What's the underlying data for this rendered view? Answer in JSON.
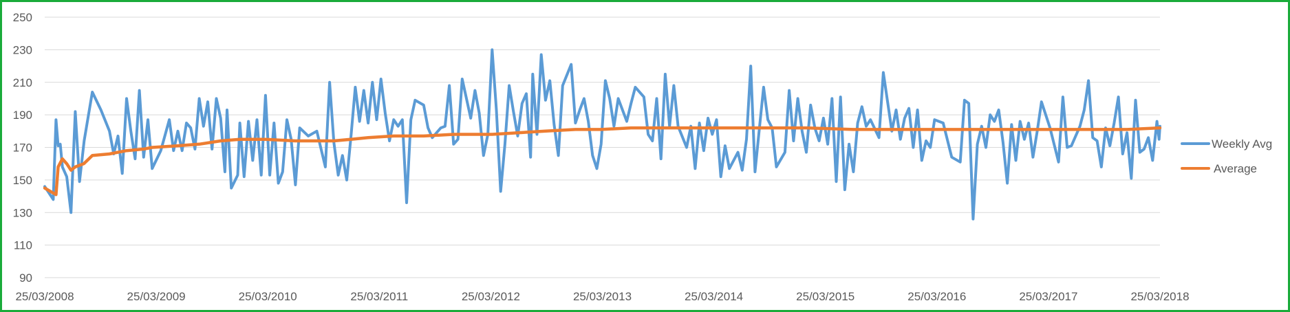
{
  "chart_data": {
    "type": "line",
    "title": "",
    "xlabel": "",
    "ylabel": "",
    "ylim": [
      90,
      250
    ],
    "yticks": [
      90,
      110,
      130,
      150,
      170,
      190,
      210,
      230,
      250
    ],
    "xlim": [
      "2008-03-25",
      "2018-03-25"
    ],
    "xtick_labels": [
      "25/03/2008",
      "25/03/2009",
      "25/03/2010",
      "25/03/2011",
      "25/03/2012",
      "25/03/2013",
      "25/03/2014",
      "25/03/2015",
      "25/03/2016",
      "25/03/2017",
      "25/03/2018"
    ],
    "grid": true,
    "legend_position": "right",
    "series": [
      {
        "name": "Weekly Avg",
        "color": "#5b9bd5",
        "points": [
          [
            "2008-03-25",
            146
          ],
          [
            "2008-04-22",
            138
          ],
          [
            "2008-05-01",
            187
          ],
          [
            "2008-05-08",
            171
          ],
          [
            "2008-05-15",
            172
          ],
          [
            "2008-05-22",
            158
          ],
          [
            "2008-06-05",
            152
          ],
          [
            "2008-06-19",
            130
          ],
          [
            "2008-07-03",
            192
          ],
          [
            "2008-07-17",
            149
          ],
          [
            "2008-08-01",
            174
          ],
          [
            "2008-08-28",
            204
          ],
          [
            "2008-09-25",
            193
          ],
          [
            "2008-10-23",
            180
          ],
          [
            "2008-11-06",
            166
          ],
          [
            "2008-11-20",
            177
          ],
          [
            "2008-12-04",
            154
          ],
          [
            "2008-12-18",
            200
          ],
          [
            "2009-01-01",
            180
          ],
          [
            "2009-01-15",
            163
          ],
          [
            "2009-01-29",
            205
          ],
          [
            "2009-02-12",
            164
          ],
          [
            "2009-02-26",
            187
          ],
          [
            "2009-03-12",
            157
          ],
          [
            "2009-04-09",
            168
          ],
          [
            "2009-05-07",
            187
          ],
          [
            "2009-05-21",
            168
          ],
          [
            "2009-06-04",
            180
          ],
          [
            "2009-06-18",
            168
          ],
          [
            "2009-07-02",
            185
          ],
          [
            "2009-07-16",
            182
          ],
          [
            "2009-07-30",
            169
          ],
          [
            "2009-08-13",
            200
          ],
          [
            "2009-08-27",
            183
          ],
          [
            "2009-09-10",
            198
          ],
          [
            "2009-09-24",
            169
          ],
          [
            "2009-10-08",
            200
          ],
          [
            "2009-10-22",
            188
          ],
          [
            "2009-11-05",
            155
          ],
          [
            "2009-11-12",
            193
          ],
          [
            "2009-11-26",
            145
          ],
          [
            "2009-12-17",
            153
          ],
          [
            "2009-12-24",
            185
          ],
          [
            "2010-01-07",
            152
          ],
          [
            "2010-01-21",
            186
          ],
          [
            "2010-02-04",
            162
          ],
          [
            "2010-02-18",
            187
          ],
          [
            "2010-03-04",
            153
          ],
          [
            "2010-03-18",
            202
          ],
          [
            "2010-04-01",
            153
          ],
          [
            "2010-04-15",
            185
          ],
          [
            "2010-04-29",
            148
          ],
          [
            "2010-05-13",
            155
          ],
          [
            "2010-05-27",
            187
          ],
          [
            "2010-06-10",
            175
          ],
          [
            "2010-06-24",
            147
          ],
          [
            "2010-07-08",
            182
          ],
          [
            "2010-08-05",
            177
          ],
          [
            "2010-09-02",
            180
          ],
          [
            "2010-09-16",
            169
          ],
          [
            "2010-09-30",
            158
          ],
          [
            "2010-10-14",
            210
          ],
          [
            "2010-10-28",
            173
          ],
          [
            "2010-11-11",
            153
          ],
          [
            "2010-11-25",
            165
          ],
          [
            "2010-12-09",
            150
          ],
          [
            "2010-12-23",
            177
          ],
          [
            "2011-01-06",
            207
          ],
          [
            "2011-01-20",
            186
          ],
          [
            "2011-02-03",
            205
          ],
          [
            "2011-02-17",
            185
          ],
          [
            "2011-03-03",
            210
          ],
          [
            "2011-03-17",
            187
          ],
          [
            "2011-03-31",
            212
          ],
          [
            "2011-04-14",
            191
          ],
          [
            "2011-04-28",
            174
          ],
          [
            "2011-05-12",
            187
          ],
          [
            "2011-05-26",
            183
          ],
          [
            "2011-06-09",
            187
          ],
          [
            "2011-06-23",
            136
          ],
          [
            "2011-07-07",
            187
          ],
          [
            "2011-07-21",
            199
          ],
          [
            "2011-08-18",
            196
          ],
          [
            "2011-09-01",
            182
          ],
          [
            "2011-09-15",
            176
          ],
          [
            "2011-10-13",
            182
          ],
          [
            "2011-10-27",
            183
          ],
          [
            "2011-11-10",
            208
          ],
          [
            "2011-11-24",
            172
          ],
          [
            "2011-12-08",
            175
          ],
          [
            "2011-12-22",
            212
          ],
          [
            "2012-01-19",
            188
          ],
          [
            "2012-02-02",
            205
          ],
          [
            "2012-02-16",
            191
          ],
          [
            "2012-03-01",
            165
          ],
          [
            "2012-03-15",
            178
          ],
          [
            "2012-03-29",
            230
          ],
          [
            "2012-04-12",
            193
          ],
          [
            "2012-04-26",
            143
          ],
          [
            "2012-05-10",
            172
          ],
          [
            "2012-05-24",
            208
          ],
          [
            "2012-06-07",
            192
          ],
          [
            "2012-06-21",
            177
          ],
          [
            "2012-07-05",
            197
          ],
          [
            "2012-07-19",
            203
          ],
          [
            "2012-08-02",
            164
          ],
          [
            "2012-08-09",
            215
          ],
          [
            "2012-08-23",
            178
          ],
          [
            "2012-09-06",
            227
          ],
          [
            "2012-09-20",
            199
          ],
          [
            "2012-10-04",
            211
          ],
          [
            "2012-10-18",
            184
          ],
          [
            "2012-11-01",
            165
          ],
          [
            "2012-11-15",
            208
          ],
          [
            "2012-12-13",
            221
          ],
          [
            "2012-12-27",
            185
          ],
          [
            "2013-01-10",
            193
          ],
          [
            "2013-01-24",
            200
          ],
          [
            "2013-02-07",
            186
          ],
          [
            "2013-02-21",
            165
          ],
          [
            "2013-03-07",
            157
          ],
          [
            "2013-03-21",
            172
          ],
          [
            "2013-04-04",
            211
          ],
          [
            "2013-04-18",
            200
          ],
          [
            "2013-05-02",
            183
          ],
          [
            "2013-05-16",
            200
          ],
          [
            "2013-06-13",
            186
          ],
          [
            "2013-06-27",
            197
          ],
          [
            "2013-07-11",
            207
          ],
          [
            "2013-08-08",
            201
          ],
          [
            "2013-08-22",
            178
          ],
          [
            "2013-09-05",
            174
          ],
          [
            "2013-09-19",
            200
          ],
          [
            "2013-10-03",
            163
          ],
          [
            "2013-10-17",
            215
          ],
          [
            "2013-10-31",
            183
          ],
          [
            "2013-11-14",
            208
          ],
          [
            "2013-11-28",
            183
          ],
          [
            "2013-12-26",
            170
          ],
          [
            "2014-01-09",
            183
          ],
          [
            "2014-01-23",
            157
          ],
          [
            "2014-02-06",
            185
          ],
          [
            "2014-02-20",
            168
          ],
          [
            "2014-03-06",
            188
          ],
          [
            "2014-03-20",
            178
          ],
          [
            "2014-04-03",
            187
          ],
          [
            "2014-04-17",
            152
          ],
          [
            "2014-05-01",
            171
          ],
          [
            "2014-05-15",
            157
          ],
          [
            "2014-06-12",
            167
          ],
          [
            "2014-06-26",
            156
          ],
          [
            "2014-07-10",
            175
          ],
          [
            "2014-07-24",
            220
          ],
          [
            "2014-08-07",
            155
          ],
          [
            "2014-08-21",
            181
          ],
          [
            "2014-09-04",
            207
          ],
          [
            "2014-09-18",
            187
          ],
          [
            "2014-10-02",
            182
          ],
          [
            "2014-10-16",
            158
          ],
          [
            "2014-11-13",
            167
          ],
          [
            "2014-11-27",
            205
          ],
          [
            "2014-12-11",
            174
          ],
          [
            "2014-12-25",
            200
          ],
          [
            "2015-01-08",
            180
          ],
          [
            "2015-01-22",
            167
          ],
          [
            "2015-02-05",
            196
          ],
          [
            "2015-02-19",
            182
          ],
          [
            "2015-03-05",
            174
          ],
          [
            "2015-03-19",
            188
          ],
          [
            "2015-04-02",
            172
          ],
          [
            "2015-04-16",
            200
          ],
          [
            "2015-04-30",
            149
          ],
          [
            "2015-05-14",
            201
          ],
          [
            "2015-05-28",
            144
          ],
          [
            "2015-06-11",
            172
          ],
          [
            "2015-06-25",
            155
          ],
          [
            "2015-07-09",
            185
          ],
          [
            "2015-07-23",
            195
          ],
          [
            "2015-08-06",
            183
          ],
          [
            "2015-08-20",
            187
          ],
          [
            "2015-09-17",
            176
          ],
          [
            "2015-10-01",
            216
          ],
          [
            "2015-10-15",
            198
          ],
          [
            "2015-10-29",
            180
          ],
          [
            "2015-11-12",
            193
          ],
          [
            "2015-11-26",
            175
          ],
          [
            "2015-12-10",
            188
          ],
          [
            "2015-12-24",
            194
          ],
          [
            "2016-01-07",
            170
          ],
          [
            "2016-01-21",
            193
          ],
          [
            "2016-02-04",
            162
          ],
          [
            "2016-02-18",
            174
          ],
          [
            "2016-03-03",
            170
          ],
          [
            "2016-03-17",
            187
          ],
          [
            "2016-04-14",
            185
          ],
          [
            "2016-05-12",
            164
          ],
          [
            "2016-06-09",
            161
          ],
          [
            "2016-06-23",
            199
          ],
          [
            "2016-07-07",
            197
          ],
          [
            "2016-07-21",
            126
          ],
          [
            "2016-08-04",
            172
          ],
          [
            "2016-08-18",
            183
          ],
          [
            "2016-09-01",
            170
          ],
          [
            "2016-09-15",
            190
          ],
          [
            "2016-09-29",
            186
          ],
          [
            "2016-10-13",
            193
          ],
          [
            "2016-10-27",
            173
          ],
          [
            "2016-11-10",
            148
          ],
          [
            "2016-11-24",
            184
          ],
          [
            "2016-12-08",
            162
          ],
          [
            "2016-12-22",
            186
          ],
          [
            "2017-01-05",
            175
          ],
          [
            "2017-01-19",
            185
          ],
          [
            "2017-02-02",
            164
          ],
          [
            "2017-02-16",
            180
          ],
          [
            "2017-03-02",
            198
          ],
          [
            "2017-03-30",
            182
          ],
          [
            "2017-04-27",
            161
          ],
          [
            "2017-05-11",
            201
          ],
          [
            "2017-05-25",
            170
          ],
          [
            "2017-06-08",
            171
          ],
          [
            "2017-07-06",
            183
          ],
          [
            "2017-07-20",
            193
          ],
          [
            "2017-08-03",
            211
          ],
          [
            "2017-08-17",
            176
          ],
          [
            "2017-08-31",
            174
          ],
          [
            "2017-09-14",
            158
          ],
          [
            "2017-09-28",
            182
          ],
          [
            "2017-10-12",
            171
          ],
          [
            "2017-10-26",
            185
          ],
          [
            "2017-11-09",
            201
          ],
          [
            "2017-11-23",
            166
          ],
          [
            "2017-12-07",
            179
          ],
          [
            "2017-12-21",
            151
          ],
          [
            "2018-01-04",
            199
          ],
          [
            "2018-01-18",
            167
          ],
          [
            "2018-02-01",
            169
          ],
          [
            "2018-02-15",
            176
          ],
          [
            "2018-03-01",
            162
          ],
          [
            "2018-03-15",
            186
          ],
          [
            "2018-03-22",
            175
          ],
          [
            "2018-03-25",
            183
          ]
        ]
      },
      {
        "name": "Average",
        "color": "#ed7d31",
        "points": [
          [
            "2008-03-25",
            145
          ],
          [
            "2008-05-01",
            141
          ],
          [
            "2008-05-08",
            158
          ],
          [
            "2008-05-22",
            163
          ],
          [
            "2008-06-05",
            160
          ],
          [
            "2008-06-19",
            156
          ],
          [
            "2008-07-03",
            158
          ],
          [
            "2008-07-31",
            160
          ],
          [
            "2008-08-28",
            165
          ],
          [
            "2008-10-23",
            166
          ],
          [
            "2008-11-20",
            167
          ],
          [
            "2008-12-18",
            168
          ],
          [
            "2009-02-12",
            169
          ],
          [
            "2009-03-12",
            170
          ],
          [
            "2009-06-04",
            171
          ],
          [
            "2009-08-13",
            172
          ],
          [
            "2009-10-22",
            174
          ],
          [
            "2009-12-24",
            175
          ],
          [
            "2010-03-18",
            175
          ],
          [
            "2010-06-24",
            174
          ],
          [
            "2010-10-28",
            174
          ],
          [
            "2010-12-23",
            175
          ],
          [
            "2011-02-17",
            176
          ],
          [
            "2011-05-12",
            177
          ],
          [
            "2011-08-18",
            177
          ],
          [
            "2011-11-24",
            178
          ],
          [
            "2012-03-29",
            178
          ],
          [
            "2012-06-21",
            179
          ],
          [
            "2012-09-20",
            180
          ],
          [
            "2012-12-27",
            181
          ],
          [
            "2013-03-21",
            181
          ],
          [
            "2013-06-27",
            182
          ],
          [
            "2013-10-31",
            182
          ],
          [
            "2014-03-20",
            182
          ],
          [
            "2014-08-21",
            182
          ],
          [
            "2015-01-22",
            182
          ],
          [
            "2015-06-25",
            181
          ],
          [
            "2015-12-24",
            181
          ],
          [
            "2016-06-23",
            181
          ],
          [
            "2016-12-22",
            181
          ],
          [
            "2017-06-08",
            181
          ],
          [
            "2017-12-07",
            181
          ],
          [
            "2018-03-25",
            182
          ]
        ]
      }
    ]
  }
}
